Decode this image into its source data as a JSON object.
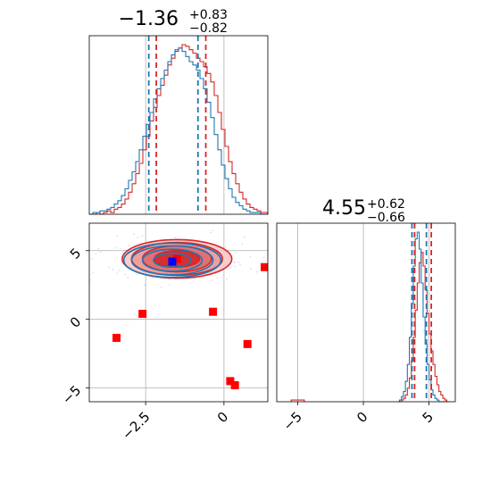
{
  "colors": {
    "red": "#d62728",
    "blue": "#1f77b4",
    "grid": "#b0b0b0",
    "marker_red": "#ff0000",
    "marker_blue": "#0000ff"
  },
  "chart_data": [
    {
      "type": "step-histogram",
      "panel": "marginal-param-1",
      "title": {
        "value": "−1.36",
        "upper": "+0.83",
        "lower": "−0.82"
      },
      "xlim": [
        -4.3,
        1.4
      ],
      "x_ticks": [
        -2.5,
        0.0
      ],
      "bins": {
        "start": -4.3,
        "width": 0.114
      },
      "series": [
        {
          "color": "red",
          "counts": [
            0,
            0,
            1,
            0,
            1,
            2,
            1,
            3,
            4,
            6,
            9,
            13,
            18,
            24,
            30,
            38,
            46,
            55,
            63,
            70,
            76,
            82,
            88,
            92,
            96,
            98,
            100,
            99,
            97,
            95,
            92,
            90,
            87,
            83,
            78,
            70,
            60,
            50,
            40,
            31,
            24,
            18,
            13,
            9,
            6,
            4,
            3,
            2,
            1,
            1
          ]
        },
        {
          "color": "blue",
          "counts": [
            0,
            1,
            1,
            2,
            2,
            3,
            4,
            6,
            8,
            11,
            15,
            20,
            25,
            31,
            38,
            46,
            53,
            60,
            68,
            74,
            80,
            85,
            90,
            94,
            97,
            98,
            96,
            93,
            90,
            88,
            85,
            80,
            74,
            66,
            57,
            47,
            38,
            29,
            21,
            15,
            10,
            7,
            5,
            3,
            2,
            1,
            1,
            1,
            0,
            0
          ]
        }
      ],
      "quantiles": {
        "red": [
          -2.16,
          -0.58
        ],
        "blue": [
          -2.4,
          -0.83
        ]
      }
    },
    {
      "type": "step-histogram",
      "panel": "marginal-param-2",
      "title": {
        "value": "4.55",
        "upper": "+0.62",
        "lower": "−0.66"
      },
      "xlim": [
        -6.6,
        7.0
      ],
      "x_ticks": [
        -5,
        0,
        5
      ],
      "bins": {
        "start": 2.6,
        "width": 0.15
      },
      "series": [
        {
          "color": "red",
          "counts": [
            0,
            0,
            1,
            2,
            4,
            8,
            14,
            24,
            38,
            54,
            70,
            82,
            88,
            80,
            66,
            52,
            40,
            30,
            22,
            15,
            10,
            6,
            4,
            2,
            1,
            0
          ]
        },
        {
          "color": "blue",
          "counts": [
            0,
            1,
            3,
            6,
            12,
            22,
            38,
            58,
            80,
            96,
            100,
            90,
            70,
            50,
            34,
            22,
            13,
            7,
            4,
            2,
            1,
            0,
            0,
            0,
            0,
            0
          ]
        }
      ],
      "outlier_bins": {
        "red": [
          {
            "x": -5.0,
            "count": 1
          }
        ]
      },
      "quantiles": {
        "red": [
          3.9,
          5.17
        ],
        "blue": [
          3.7,
          4.8
        ]
      }
    },
    {
      "type": "scatter-contour",
      "panel": "joint",
      "xlim": [
        -4.3,
        1.4
      ],
      "ylim": [
        -6.0,
        7.0
      ],
      "x_ticks": [
        -2.5,
        0.0
      ],
      "y_ticks": [
        5,
        0,
        -5
      ],
      "red_contours": {
        "center": [
          -1.5,
          4.4
        ],
        "rx": [
          1.75,
          1.45,
          1.1,
          0.72
        ],
        "ry": [
          1.4,
          1.2,
          0.95,
          0.6
        ]
      },
      "blue_contours": {
        "center": [
          -1.65,
          4.3
        ],
        "rx": [
          1.55,
          1.3,
          0.95,
          0.6
        ],
        "ry": [
          1.25,
          1.05,
          0.8,
          0.5
        ]
      },
      "red_markers": [
        {
          "x": -1.5,
          "y": 4.4
        },
        {
          "x": -3.43,
          "y": -1.35
        },
        {
          "x": -2.6,
          "y": 0.4
        },
        {
          "x": -0.35,
          "y": 0.55
        },
        {
          "x": 0.75,
          "y": -1.8
        },
        {
          "x": 0.2,
          "y": -4.5
        },
        {
          "x": 0.35,
          "y": -4.8
        },
        {
          "x": 1.3,
          "y": 3.8
        }
      ],
      "blue_markers": [
        {
          "x": -1.65,
          "y": 4.2
        }
      ]
    }
  ]
}
